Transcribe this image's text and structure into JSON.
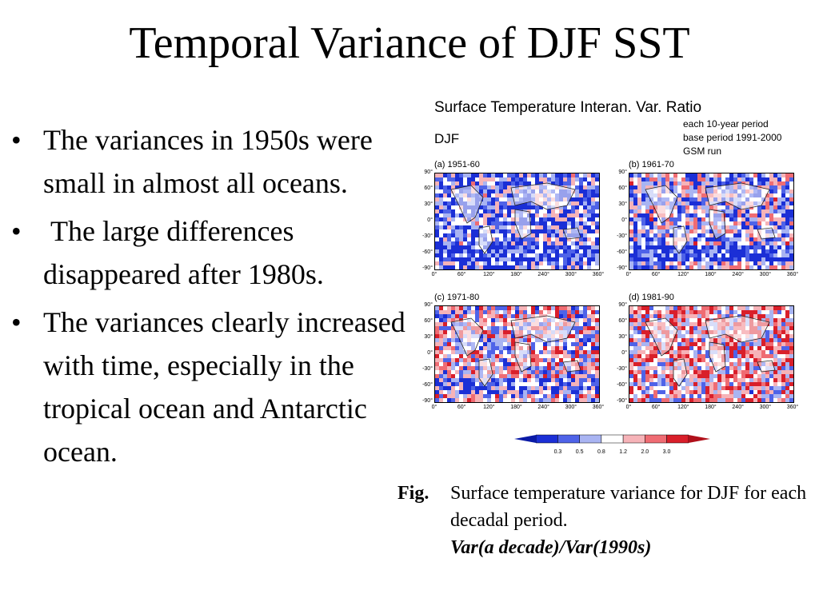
{
  "slide": {
    "title": "Temporal Variance of DJF SST",
    "bullets": [
      "The variances in 1950s were small in almost all oceans.",
      " The large differences disappeared after 1980s.",
      "The variances clearly increased with time, especially in the tropical ocean and Antarctic ocean."
    ],
    "bullet_glyph": "•"
  },
  "figure": {
    "title": "Surface Temperature Interan. Var. Ratio",
    "season": "DJF",
    "notes": [
      "each 10-year period",
      "base period 1991-2000",
      "GSM run"
    ],
    "panels": [
      {
        "label": "(a) 1951-60"
      },
      {
        "label": "(b) 1961-70"
      },
      {
        "label": "(c) 1971-80"
      },
      {
        "label": "(d) 1981-90"
      }
    ],
    "y_ticks": [
      "90°",
      "60°",
      "30°",
      "0°",
      "-30°",
      "-60°",
      "-90°"
    ],
    "x_ticks": [
      "0°",
      "60°",
      "120°",
      "180°",
      "240°",
      "300°",
      "360°"
    ],
    "colorbar": {
      "labels": [
        "0.3",
        "0.5",
        "0.8",
        "1.2",
        "2.0",
        "3.0"
      ],
      "colors": [
        "#1b2fd6",
        "#4f63e8",
        "#a9b4f2",
        "#ffffff",
        "#f6b3b8",
        "#ef6c73",
        "#d91f2a"
      ]
    }
  },
  "caption": {
    "lead": "Fig.",
    "text": "Surface temperature  variance for DJF for each decadal period.",
    "emphasis": "Var(a decade)/Var(1990s)"
  }
}
